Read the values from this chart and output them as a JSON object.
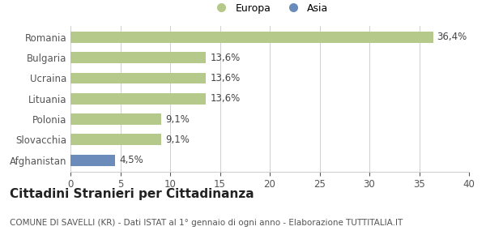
{
  "categories": [
    "Romania",
    "Bulgaria",
    "Ucraina",
    "Lituania",
    "Polonia",
    "Slovacchia",
    "Afghanistan"
  ],
  "values": [
    36.4,
    13.6,
    13.6,
    13.6,
    9.1,
    9.1,
    4.5
  ],
  "labels": [
    "36,4%",
    "13,6%",
    "13,6%",
    "13,6%",
    "9,1%",
    "9,1%",
    "4,5%"
  ],
  "colors": [
    "#b5c98a",
    "#b5c98a",
    "#b5c98a",
    "#b5c98a",
    "#b5c98a",
    "#b5c98a",
    "#6b8cba"
  ],
  "europa_color": "#b5c98a",
  "asia_color": "#6b8cba",
  "xlim": [
    0,
    40
  ],
  "xticks": [
    0,
    5,
    10,
    15,
    20,
    25,
    30,
    35,
    40
  ],
  "title": "Cittadini Stranieri per Cittadinanza",
  "subtitle": "COMUNE DI SAVELLI (KR) - Dati ISTAT al 1° gennaio di ogni anno - Elaborazione TUTTITALIA.IT",
  "legend_labels": [
    "Europa",
    "Asia"
  ],
  "bg_color": "#ffffff",
  "grid_color": "#d0d0d0",
  "bar_height": 0.55,
  "label_fontsize": 8.5,
  "title_fontsize": 11,
  "subtitle_fontsize": 7.5,
  "axis_label_fontsize": 8.5,
  "legend_fontsize": 9
}
